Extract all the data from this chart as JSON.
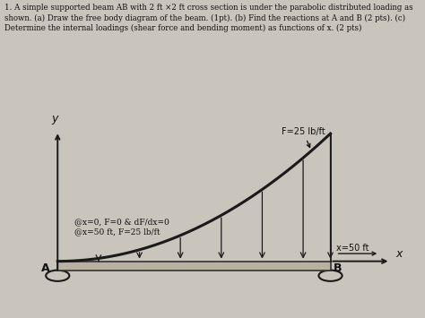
{
  "title_text": "1. A simple supported beam AB with 2 ft ×2 ft cross section is under the parabolic distributed loading as\nshown. (a) Draw the free body diagram of the beam. (1pt). (b) Find the reactions at A and B (2 pts). (c)\nDetermine the internal loadings (shear force and bending moment) as functions of x. (2 pts)",
  "bg_color": "#c9c4bc",
  "beam_face_color": "#b8b0a0",
  "beam_edge_color": "#333333",
  "curve_color": "#1a1a1a",
  "axis_color": "#1a1a1a",
  "text_color": "#111111",
  "annotation_text1": "@x=0, F=0 & dF/dx=0",
  "annotation_text2": "@x=50 ft, F=25 lb/ft",
  "label_F": "F=25 lb/ft",
  "label_x50": "x=50 ft",
  "label_x": "x",
  "label_y": "y",
  "label_A": "A",
  "label_B": "B",
  "figsize": [
    4.74,
    3.55
  ],
  "dpi": 100
}
